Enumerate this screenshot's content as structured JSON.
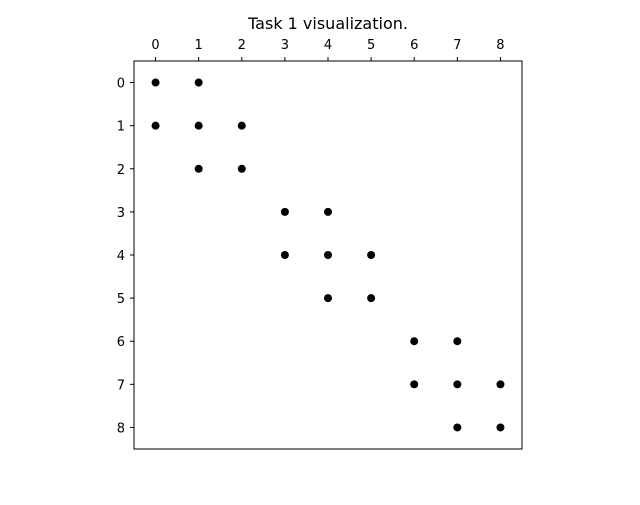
{
  "chart_data": {
    "type": "scatter",
    "title": "Task 1 visualization.",
    "xlabel": "",
    "ylabel": "",
    "xlim": [
      -0.5,
      8.5
    ],
    "ylim": [
      8.5,
      -0.5
    ],
    "x_axis_position": "top",
    "y_axis_inverted": true,
    "grid": false,
    "legend": "none",
    "marker_color": "#000000",
    "x_ticks": [
      "0",
      "1",
      "2",
      "3",
      "4",
      "5",
      "6",
      "7",
      "8"
    ],
    "y_ticks": [
      "0",
      "1",
      "2",
      "3",
      "4",
      "5",
      "6",
      "7",
      "8"
    ],
    "points": [
      {
        "x": 0,
        "y": 0
      },
      {
        "x": 1,
        "y": 0
      },
      {
        "x": 0,
        "y": 1
      },
      {
        "x": 1,
        "y": 1
      },
      {
        "x": 2,
        "y": 1
      },
      {
        "x": 1,
        "y": 2
      },
      {
        "x": 2,
        "y": 2
      },
      {
        "x": 3,
        "y": 3
      },
      {
        "x": 4,
        "y": 3
      },
      {
        "x": 3,
        "y": 4
      },
      {
        "x": 4,
        "y": 4
      },
      {
        "x": 5,
        "y": 4
      },
      {
        "x": 4,
        "y": 5
      },
      {
        "x": 5,
        "y": 5
      },
      {
        "x": 6,
        "y": 6
      },
      {
        "x": 7,
        "y": 6
      },
      {
        "x": 6,
        "y": 7
      },
      {
        "x": 7,
        "y": 7
      },
      {
        "x": 8,
        "y": 7
      },
      {
        "x": 7,
        "y": 8
      },
      {
        "x": 8,
        "y": 8
      }
    ]
  }
}
